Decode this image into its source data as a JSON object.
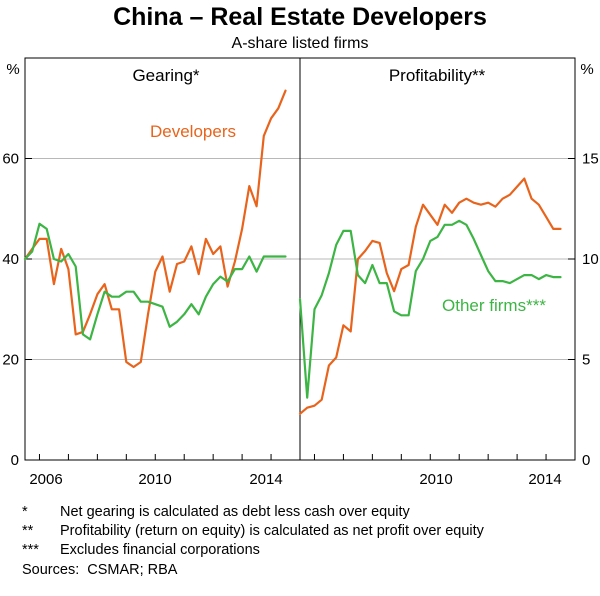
{
  "chart_data": {
    "type": "line",
    "title": "China – Real Estate Developers",
    "subtitle": "A-share listed firms",
    "left_unit": "%",
    "right_unit": "%",
    "left_axis": {
      "ylim": [
        0,
        80
      ],
      "ticks": [
        0,
        20,
        40,
        60
      ]
    },
    "right_axis": {
      "ylim": [
        0,
        20
      ],
      "ticks": [
        0,
        5,
        10,
        15
      ]
    },
    "x_tick_labels": [
      "2006",
      "2010",
      "2014",
      "2010",
      "2014"
    ],
    "panels": [
      {
        "title": "Gearing*",
        "xlim": [
          2005.5,
          2015.0
        ],
        "y_axis": "left",
        "series": [
          {
            "name": "Developers",
            "label": "Developers",
            "color": "#e8641c",
            "x": [
              2005.5,
              2005.75,
              2006.0,
              2006.25,
              2006.5,
              2006.75,
              2007.0,
              2007.25,
              2007.5,
              2007.75,
              2008.0,
              2008.25,
              2008.5,
              2008.75,
              2009.0,
              2009.25,
              2009.5,
              2009.75,
              2010.0,
              2010.25,
              2010.5,
              2010.75,
              2011.0,
              2011.25,
              2011.5,
              2011.75,
              2012.0,
              2012.25,
              2012.5,
              2012.75,
              2013.0,
              2013.25,
              2013.5,
              2013.75,
              2014.0,
              2014.25,
              2014.5
            ],
            "values": [
              40,
              42,
              44,
              44,
              35,
              42,
              38,
              25,
              25.5,
              29,
              33,
              35,
              30,
              30,
              19.5,
              18.5,
              19.5,
              29,
              37.5,
              40.5,
              33.5,
              39,
              39.5,
              42.5,
              37,
              44,
              41,
              42.5,
              34.5,
              39.5,
              46,
              54.5,
              50.5,
              64.5,
              68,
              70,
              73.5
            ]
          },
          {
            "name": "Other firms",
            "color": "#3cb544",
            "x": [
              2005.5,
              2005.75,
              2006.0,
              2006.25,
              2006.5,
              2006.75,
              2007.0,
              2007.25,
              2007.5,
              2007.75,
              2008.0,
              2008.25,
              2008.5,
              2008.75,
              2009.0,
              2009.25,
              2009.5,
              2009.75,
              2010.0,
              2010.25,
              2010.5,
              2010.75,
              2011.0,
              2011.25,
              2011.5,
              2011.75,
              2012.0,
              2012.25,
              2012.5,
              2012.75,
              2013.0,
              2013.25,
              2013.5,
              2013.75,
              2014.0,
              2014.25,
              2014.5
            ],
            "values": [
              40,
              41.5,
              47,
              46,
              40,
              39.5,
              41,
              38.5,
              25,
              24,
              29,
              33.5,
              32.5,
              32.5,
              33.5,
              33.5,
              31.5,
              31.5,
              31,
              30.5,
              26.5,
              27.5,
              29,
              31,
              29,
              32.5,
              35,
              36.5,
              35.5,
              38,
              38,
              40.5,
              37.5,
              40.5,
              40.5,
              40.5,
              40.5
            ]
          }
        ]
      },
      {
        "title": "Profitability**",
        "xlim": [
          2005.5,
          2015.0
        ],
        "y_axis": "right",
        "series": [
          {
            "name": "Developers",
            "color": "#e8641c",
            "x": [
              2005.5,
              2005.75,
              2006.0,
              2006.25,
              2006.5,
              2006.75,
              2007.0,
              2007.25,
              2007.5,
              2007.75,
              2008.0,
              2008.25,
              2008.5,
              2008.75,
              2009.0,
              2009.25,
              2009.5,
              2009.75,
              2010.0,
              2010.25,
              2010.5,
              2010.75,
              2011.0,
              2011.25,
              2011.5,
              2011.75,
              2012.0,
              2012.25,
              2012.5,
              2012.75,
              2013.0,
              2013.25,
              2013.5,
              2013.75,
              2014.0,
              2014.25,
              2014.5
            ],
            "values": [
              2.3,
              2.6,
              2.7,
              3.0,
              4.7,
              5.1,
              6.7,
              6.4,
              10.0,
              10.4,
              10.9,
              10.8,
              9.3,
              8.4,
              9.5,
              9.7,
              11.6,
              12.7,
              12.2,
              11.7,
              12.7,
              12.3,
              12.8,
              13.0,
              12.8,
              12.7,
              12.8,
              12.6,
              13.0,
              13.2,
              13.6,
              14.0,
              13.0,
              12.7,
              12.1,
              11.5,
              11.5
            ],
            "dense": true
          },
          {
            "name": "Other firms",
            "label": "Other firms***",
            "color": "#3cb544",
            "x": [
              2005.5,
              2005.75,
              2006.0,
              2006.25,
              2006.5,
              2006.75,
              2007.0,
              2007.25,
              2007.5,
              2007.75,
              2008.0,
              2008.25,
              2008.5,
              2008.75,
              2009.0,
              2009.25,
              2009.5,
              2009.75,
              2010.0,
              2010.25,
              2010.5,
              2010.75,
              2011.0,
              2011.25,
              2011.5,
              2011.75,
              2012.0,
              2012.25,
              2012.5,
              2012.75,
              2013.0,
              2013.25,
              2013.5,
              2013.75,
              2014.0,
              2014.25,
              2014.5
            ],
            "values": [
              8.0,
              3.1,
              7.5,
              8.2,
              9.3,
              10.7,
              11.4,
              11.4,
              9.2,
              8.8,
              9.7,
              8.8,
              8.8,
              7.4,
              7.2,
              7.2,
              9.4,
              10.0,
              10.9,
              11.1,
              11.7,
              11.7,
              11.9,
              11.7,
              11.0,
              10.2,
              9.4,
              8.9,
              8.9,
              8.8,
              9.0,
              9.2,
              9.2,
              9.0,
              9.2,
              9.1,
              9.1
            ]
          }
        ]
      }
    ]
  },
  "notes": [
    {
      "marker": "*",
      "text": "Net gearing is calculated as debt less cash over equity"
    },
    {
      "marker": "**",
      "text": "Profitability (return on equity) is calculated as net profit over equity"
    },
    {
      "marker": "***",
      "text": "Excludes financial corporations"
    }
  ],
  "sources": {
    "label": "Sources:",
    "text": "CSMAR; RBA"
  }
}
